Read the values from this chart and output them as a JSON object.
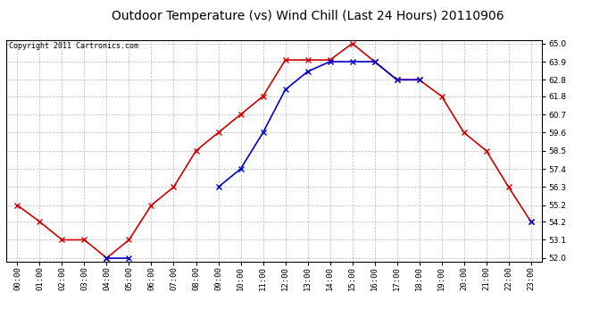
{
  "title": "Outdoor Temperature (vs) Wind Chill (Last 24 Hours) 20110906",
  "copyright": "Copyright 2011 Cartronics.com",
  "hours": [
    "00:00",
    "01:00",
    "02:00",
    "03:00",
    "04:00",
    "05:00",
    "06:00",
    "07:00",
    "08:00",
    "09:00",
    "10:00",
    "11:00",
    "12:00",
    "13:00",
    "14:00",
    "15:00",
    "16:00",
    "17:00",
    "18:00",
    "19:00",
    "20:00",
    "21:00",
    "22:00",
    "23:00"
  ],
  "temp": [
    55.2,
    54.2,
    53.1,
    53.1,
    52.0,
    53.1,
    55.2,
    56.3,
    58.5,
    59.6,
    60.7,
    61.8,
    64.0,
    64.0,
    64.0,
    65.0,
    63.9,
    62.8,
    62.8,
    61.8,
    59.6,
    58.5,
    56.3,
    54.2
  ],
  "wind_chill": [
    null,
    null,
    null,
    null,
    52.0,
    52.0,
    null,
    null,
    null,
    56.3,
    57.4,
    59.6,
    62.2,
    63.3,
    63.9,
    63.9,
    63.9,
    62.8,
    62.8,
    null,
    null,
    null,
    null,
    54.2
  ],
  "temp_color": "#cc0000",
  "wind_chill_color": "#0000cc",
  "bg_color": "#ffffff",
  "plot_bg_color": "#ffffff",
  "grid_color": "#aaaaaa",
  "ylim": [
    52.0,
    65.0
  ],
  "yticks": [
    52.0,
    53.1,
    54.2,
    55.2,
    56.3,
    57.4,
    58.5,
    59.6,
    60.7,
    61.8,
    62.8,
    63.9,
    65.0
  ],
  "title_fontsize": 10,
  "copyright_fontsize": 6,
  "marker": "x",
  "linewidth": 1.2,
  "markersize": 4,
  "tick_fontsize": 6.5
}
